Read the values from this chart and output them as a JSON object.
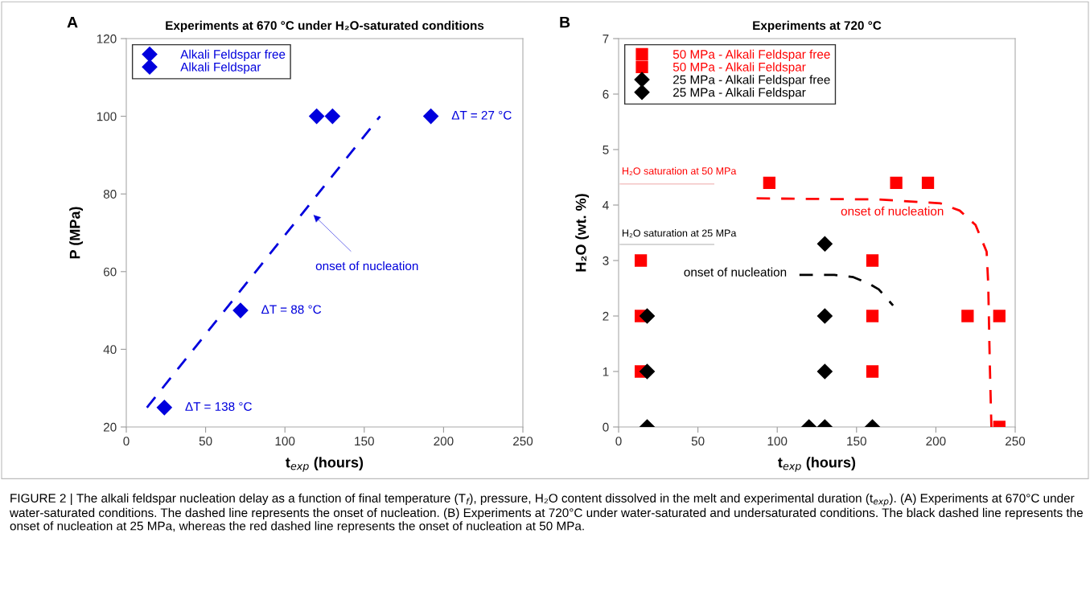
{
  "chart_data": [
    {
      "type": "scatter",
      "title": "Experiments at 670 °C under H₂O-saturated conditions",
      "xlabel": "t$_{exp}$ (hours)",
      "ylabel": "P (MPa)",
      "xlim": [
        0,
        250
      ],
      "xticks": [
        0,
        50,
        100,
        150,
        200,
        250
      ],
      "ylim": [
        20,
        120
      ],
      "yticks": [
        20,
        40,
        60,
        80,
        100,
        120
      ],
      "legend": "top left",
      "grid": false,
      "series": [
        {
          "name": "Alkali Feldspar free",
          "color": "#0000dd",
          "marker": "diamond",
          "x": [
            120,
            130
          ],
          "values": [
            100,
            100
          ]
        },
        {
          "name": "Alkali Feldspar",
          "color": "#0000dd",
          "marker": "diamond",
          "x": [
            192,
            72,
            24
          ],
          "values": [
            100,
            50,
            25
          ]
        },
        {
          "type": "line",
          "color": "#0000dd",
          "line_style": "dashed",
          "x": [
            13,
            160
          ],
          "values": [
            25,
            100
          ]
        }
      ],
      "annotations": [
        "A",
        "ΔT = 27 °C",
        "ΔT = 88 °C",
        "ΔT = 138 °C",
        "onset of nucleation",
        "FIGURE 2 | The alkali feldspar nucleation delay as a function of final temperature (T$_{f}$), pressure, H₂O content dissolved in the melt and experimental duration (t$_{exp}$). (A) Experiments at 670°C under water-saturated conditions. The dashed line represents the onset of nucleation. (B) Experiments at 720°C under water-saturated and undersaturated conditions. The black dashed line represents the onset of nucleation at 25 MPa, whereas the red dashed line represents the onset of nucleation at 50 MPa."
      ]
    },
    {
      "type": "scatter",
      "title": "Experiments at 720 °C",
      "xlabel": "t$_{exp}$ (hours)",
      "ylabel": "H₂O (wt. %)",
      "xlim": [
        0,
        250
      ],
      "xticks": [
        0,
        50,
        100,
        150,
        200,
        250
      ],
      "ylim": [
        0,
        7
      ],
      "yticks": [
        0,
        1,
        2,
        3,
        4,
        5,
        6,
        7
      ],
      "legend": "top left",
      "grid": false,
      "series": [
        {
          "name": "50 MPa - Alkali Feldspar free",
          "color": "#ff0000",
          "marker": "square",
          "x": [
            14,
            14,
            14,
            160,
            160,
            160,
            220
          ],
          "values": [
            3,
            2,
            1,
            3,
            2,
            1,
            2
          ]
        },
        {
          "name": "50 MPa - Alkali Feldspar",
          "color": "#ff0000",
          "marker": "square",
          "x": [
            95,
            175,
            195,
            240,
            240
          ],
          "values": [
            4.4,
            4.4,
            4.4,
            2,
            0
          ]
        },
        {
          "name": "25 MPa - Alkali Feldspar free",
          "color": "#000000",
          "marker": "diamond",
          "x": [
            18,
            18,
            18,
            130,
            130,
            130,
            120,
            160
          ],
          "values": [
            2,
            1,
            0,
            2,
            1,
            0,
            0,
            0
          ]
        },
        {
          "name": "25 MPa - Alkali Feldspar",
          "color": "#000000",
          "marker": "diamond",
          "x": [
            130
          ],
          "values": [
            3.3
          ]
        },
        {
          "type": "line",
          "color": "#ff0000",
          "line_style": "dashed",
          "x": [
            87,
            164,
            203,
            215,
            225,
            232,
            233,
            234,
            235
          ],
          "values": [
            4.12,
            4.1,
            4.03,
            3.9,
            3.64,
            3.16,
            2.58,
            1.13,
            0
          ]
        },
        {
          "type": "line",
          "color": "#000000",
          "line_style": "dashed",
          "x": [
            114,
            136,
            148,
            158,
            164,
            173
          ],
          "values": [
            2.74,
            2.74,
            2.7,
            2.58,
            2.48,
            2.19
          ]
        },
        {
          "type": "line",
          "color": "#f4c4c4",
          "x": [
            1,
            60
          ],
          "values": [
            4.38,
            4.38
          ]
        },
        {
          "type": "line",
          "color": "#c8c8c8",
          "x": [
            1,
            60
          ],
          "values": [
            3.29,
            3.29
          ]
        }
      ],
      "annotations": [
        "B",
        "H₂O saturation at 50 MPa",
        "H₂O saturation at 25 MPa",
        "onset of nucleation",
        "onset of nucleation"
      ]
    }
  ]
}
